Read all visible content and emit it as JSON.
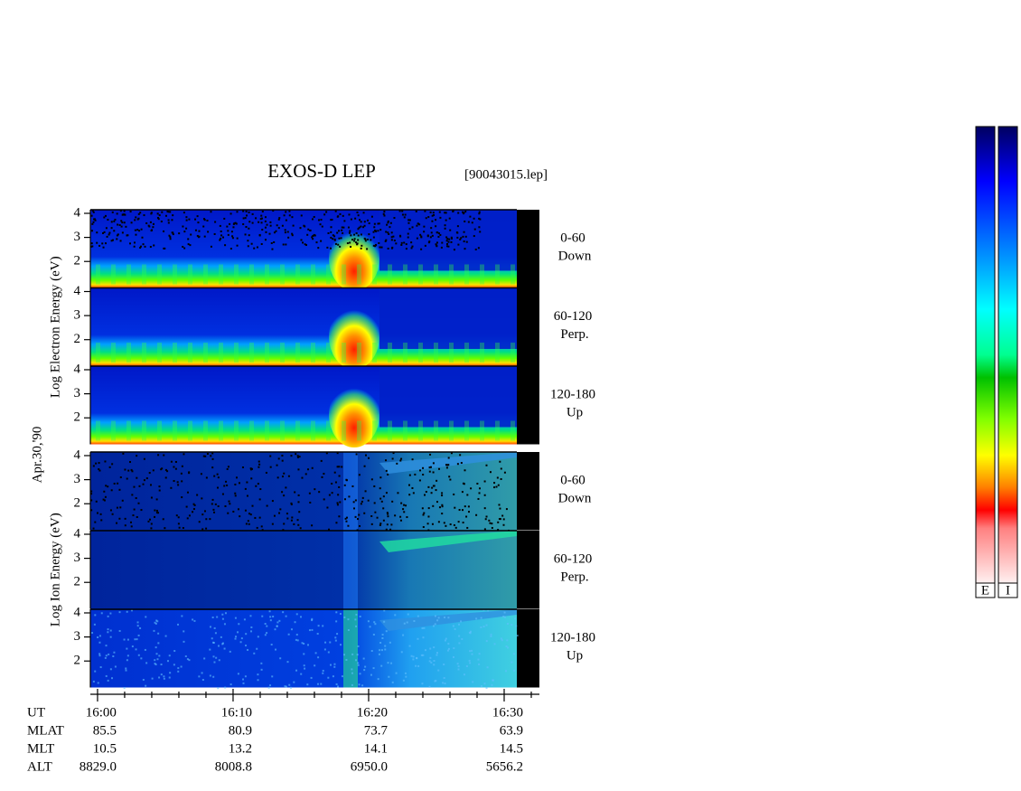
{
  "chart_data": {
    "type": "spectrogram",
    "title": "EXOS-D LEP",
    "file_label": "[90043015.lep]",
    "date_label": "Apr.30,'90",
    "groups": [
      {
        "ylabel": "Log  Electron  Energy (eV)",
        "kind": "electron",
        "panels": [
          {
            "range": "0-60",
            "direction": "Down"
          },
          {
            "range": "60-120",
            "direction": "Perp."
          },
          {
            "range": "120-180",
            "direction": "Up"
          }
        ]
      },
      {
        "ylabel": "Log  Ion  Energy (eV)",
        "kind": "ion",
        "panels": [
          {
            "range": "0-60",
            "direction": "Down"
          },
          {
            "range": "60-120",
            "direction": "Perp."
          },
          {
            "range": "120-180",
            "direction": "Up"
          }
        ]
      }
    ],
    "ylim": [
      0.9,
      4.15
    ],
    "yticks": [
      2,
      3,
      4
    ],
    "xlim": [
      -0.53,
      32.6
    ],
    "xticks": [
      {
        "value": 0,
        "label": "16:00"
      },
      {
        "value": 10,
        "label": "16:10"
      },
      {
        "value": 20,
        "label": "16:20"
      },
      {
        "value": 30,
        "label": "16:30"
      }
    ],
    "xminorticks": [
      2,
      4,
      6,
      8,
      12,
      14,
      16,
      18,
      22,
      24,
      26,
      28,
      32
    ],
    "x_row_label": "UT",
    "orbit_rows": [
      {
        "name": "MLAT",
        "values": [
          "85.5",
          "80.9",
          "73.7",
          "63.9"
        ]
      },
      {
        "name": "MLT",
        "values": [
          "10.5",
          "13.2",
          "14.1",
          "14.5"
        ]
      },
      {
        "name": "ALT",
        "values": [
          "8829.0",
          "8008.8",
          "6950.0",
          "5656.2"
        ]
      }
    ],
    "colorbars": [
      "E",
      "I"
    ]
  }
}
